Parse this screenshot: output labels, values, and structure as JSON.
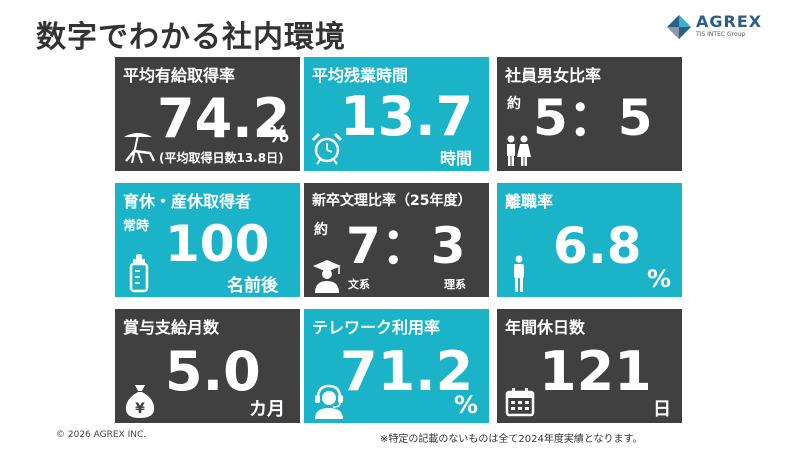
{
  "header": {
    "title": "数字でわかる社内環境",
    "logo_name": "AGREX",
    "logo_sub": "TIS INTEC Group"
  },
  "cards": {
    "paid_leave": {
      "label": "平均有給取得率",
      "value": "74.2",
      "unit": "%",
      "note": "(平均取得日数13.8日)"
    },
    "overtime": {
      "label": "平均残業時間",
      "value": "13.7",
      "unit": "時間"
    },
    "gender": {
      "label": "社員男女比率",
      "prefix": "約",
      "value": "5：5"
    },
    "childcare": {
      "label": "育休・産休取得者",
      "prefix": "常時",
      "value": "100",
      "unit": "名前後"
    },
    "new_grad": {
      "label": "新卒文理比率（25年度）",
      "prefix": "約",
      "value": "7：3",
      "left_note": "文系",
      "right_note": "理系"
    },
    "turnover": {
      "label": "離職率",
      "value": "6.8",
      "unit": "%"
    },
    "bonus": {
      "label": "賞与支給月数",
      "value": "5.0",
      "unit": "カ月"
    },
    "telework": {
      "label": "テレワーク利用率",
      "value": "71.2",
      "unit": "%"
    },
    "holidays": {
      "label": "年間休日数",
      "value": "121",
      "unit": "日"
    }
  },
  "footer": {
    "copyright": "© 2026 AGREX INC.",
    "note": "※特定の記載のないものは全て2024年度実績となります。"
  }
}
